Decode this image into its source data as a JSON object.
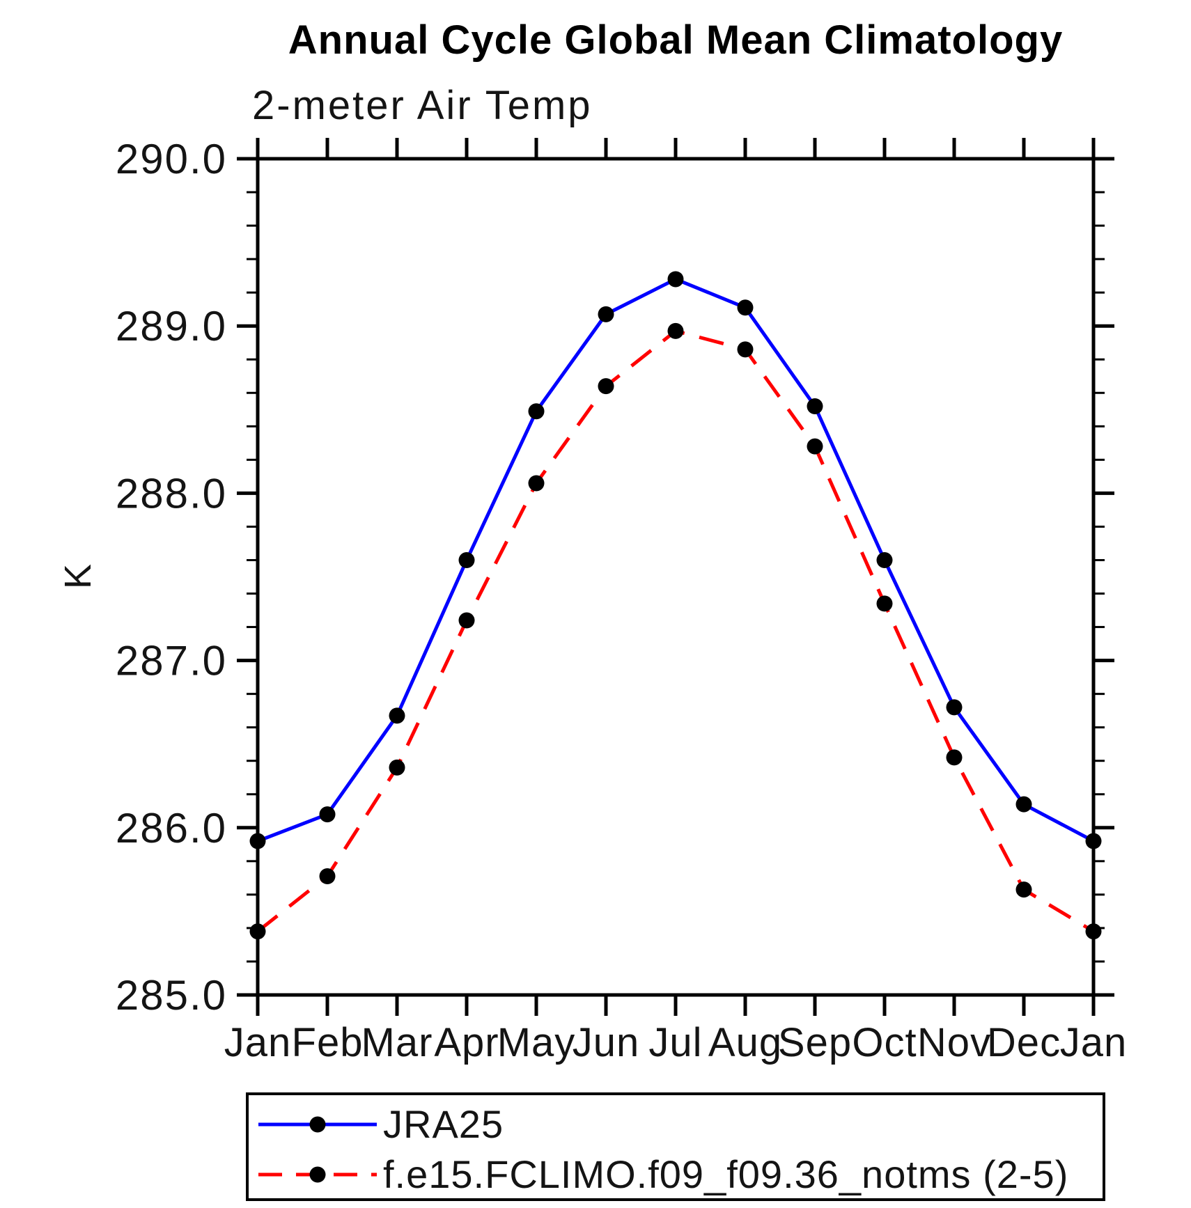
{
  "title": "Annual Cycle Global Mean Climatology",
  "subtitle": "2-meter Air Temp",
  "ylabel": "K",
  "legend": {
    "items": [
      {
        "label": "JRA25",
        "color": "#0000ff",
        "style": "solid",
        "marker": "circle"
      },
      {
        "label": "f.e15.FCLIMO.f09_f09.36_notms (2-5)",
        "color": "#ff0000",
        "style": "dashed",
        "marker": "circle"
      }
    ]
  },
  "chart_data": {
    "type": "line",
    "title": "Annual Cycle Global Mean Climatology",
    "subtitle": "2-meter Air Temp",
    "ylabel": "K",
    "categories": [
      "Jan",
      "Feb",
      "Mar",
      "Apr",
      "May",
      "Jun",
      "Jul",
      "Aug",
      "Sep",
      "Oct",
      "Nov",
      "Dec",
      "Jan"
    ],
    "series": [
      {
        "name": "JRA25",
        "color": "#0000ff",
        "style": "solid",
        "marker": "circle",
        "values": [
          285.92,
          286.08,
          286.67,
          287.6,
          288.49,
          289.07,
          289.28,
          289.11,
          288.52,
          287.6,
          286.72,
          286.14,
          285.92
        ]
      },
      {
        "name": "f.e15.FCLIMO.f09_f09.36_notms (2-5)",
        "color": "#ff0000",
        "style": "dashed",
        "marker": "circle",
        "values": [
          285.38,
          285.71,
          286.36,
          287.24,
          288.06,
          288.64,
          288.97,
          288.86,
          288.28,
          287.34,
          286.42,
          285.63,
          285.38
        ]
      }
    ],
    "ylim": [
      285.0,
      290.0
    ],
    "ytick_major": 1.0,
    "ytick_minor": 0.2,
    "ytick_labels": [
      "285.0",
      "286.0",
      "287.0",
      "288.0",
      "289.0",
      "290.0"
    ],
    "grid": false,
    "legend_position": "bottom",
    "marker_color": "#000000"
  }
}
